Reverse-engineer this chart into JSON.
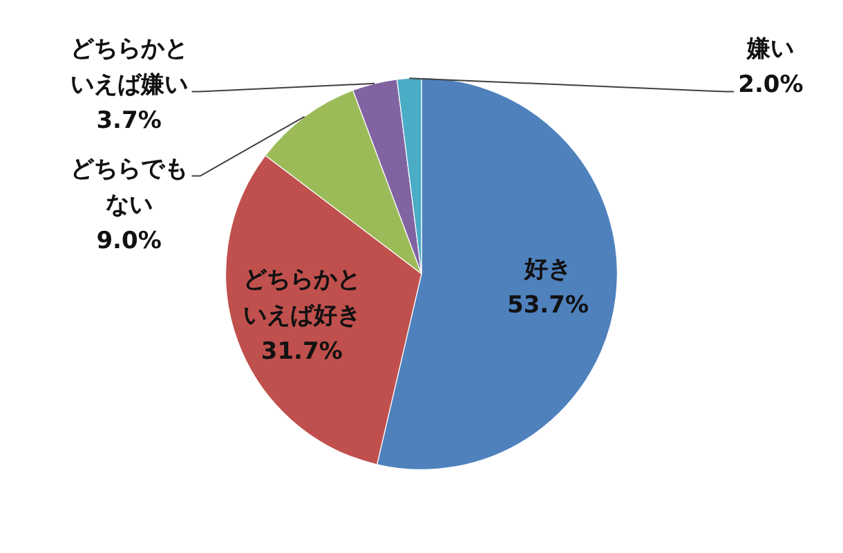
{
  "chart_data": {
    "type": "pie",
    "categories": [
      "好き",
      "どちらかといえば好き",
      "どちらでもない",
      "どちらかといえば嫌い",
      "嫌い"
    ],
    "values": [
      53.7,
      31.7,
      9.0,
      3.7,
      2.0
    ],
    "colors": [
      "#4f81bd",
      "#c0504d",
      "#9bbb59",
      "#8064a2",
      "#4bacc6"
    ],
    "value_labels": [
      "53.7%",
      "31.7%",
      "9.0%",
      "3.7%",
      "2.0%"
    ]
  }
}
